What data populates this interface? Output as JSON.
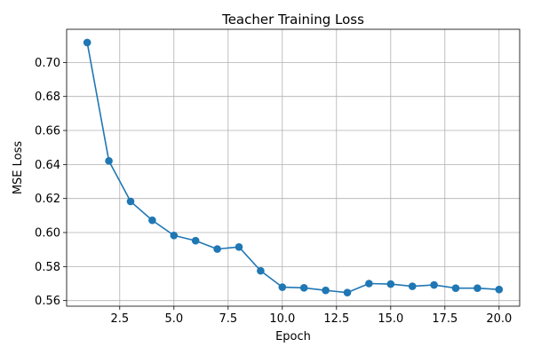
{
  "chart_data": {
    "type": "line",
    "title": "Teacher Training Loss",
    "xlabel": "Epoch",
    "ylabel": "MSE Loss",
    "xlim": [
      0.05,
      20.95
    ],
    "ylim": [
      0.5567,
      0.7195
    ],
    "xticks": [
      2.5,
      5.0,
      7.5,
      10.0,
      12.5,
      15.0,
      17.5,
      20.0
    ],
    "xtick_labels": [
      "2.5",
      "5.0",
      "7.5",
      "10.0",
      "12.5",
      "15.0",
      "17.5",
      "20.0"
    ],
    "yticks": [
      0.56,
      0.58,
      0.6,
      0.62,
      0.64,
      0.66,
      0.68,
      0.7
    ],
    "ytick_labels": [
      "0.56",
      "0.58",
      "0.60",
      "0.62",
      "0.64",
      "0.66",
      "0.68",
      "0.70"
    ],
    "grid": true,
    "color": "#1f77b4",
    "marker": "circle",
    "series": [
      {
        "x": [
          1,
          2,
          3,
          4,
          5,
          6,
          7,
          8,
          9,
          10,
          11,
          12,
          13,
          14,
          15,
          16,
          17,
          18,
          19,
          20
        ],
        "values": [
          0.7117,
          0.6421,
          0.6183,
          0.6072,
          0.5983,
          0.5952,
          0.5903,
          0.5915,
          0.5775,
          0.5679,
          0.5675,
          0.566,
          0.5647,
          0.57,
          0.5697,
          0.5684,
          0.5692,
          0.5673,
          0.5673,
          0.5665
        ]
      }
    ]
  }
}
